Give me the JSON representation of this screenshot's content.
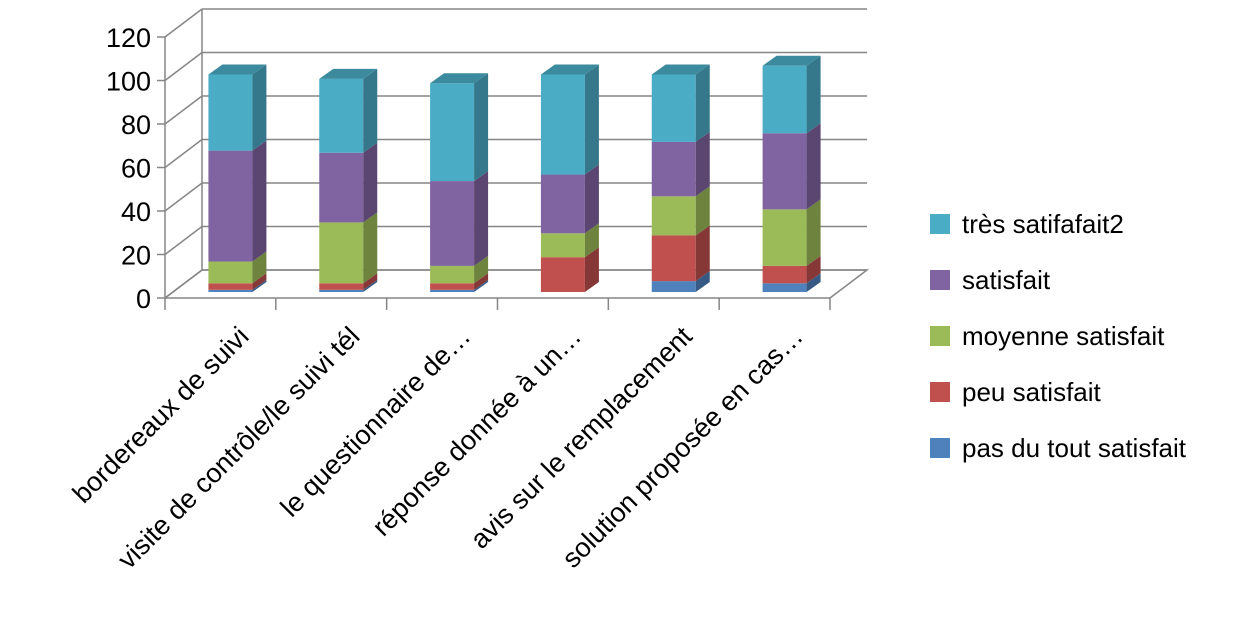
{
  "chart_data": {
    "type": "bar",
    "stacked": true,
    "three_d": true,
    "categories": [
      "bordereaux de suivi",
      "visite de contrôle/le suivi tél",
      "le questionnaire de…",
      "réponse donnée à un…",
      "avis sur le remplacement",
      "solution proposée en cas…"
    ],
    "series": [
      {
        "name": "pas du tout satisfait",
        "color": "#4F81BD",
        "values": [
          1,
          1,
          1,
          0,
          5,
          4
        ]
      },
      {
        "name": "peu satisfait",
        "color": "#C0504D",
        "values": [
          3,
          3,
          3,
          16,
          21,
          8
        ]
      },
      {
        "name": "moyenne satisfait",
        "color": "#9BBB59",
        "values": [
          10,
          28,
          8,
          11,
          18,
          26
        ]
      },
      {
        "name": "satisfait",
        "color": "#8064A2",
        "values": [
          51,
          32,
          39,
          27,
          25,
          35
        ]
      },
      {
        "name": "très satifafait2",
        "color": "#4BACC6",
        "values": [
          35,
          34,
          45,
          46,
          31,
          31
        ]
      }
    ],
    "ylim": [
      0,
      120
    ],
    "yticks": [
      0,
      20,
      40,
      60,
      80,
      100,
      120
    ],
    "title": "",
    "xlabel": "",
    "ylabel": "",
    "grid": true,
    "legend_position": "right"
  }
}
